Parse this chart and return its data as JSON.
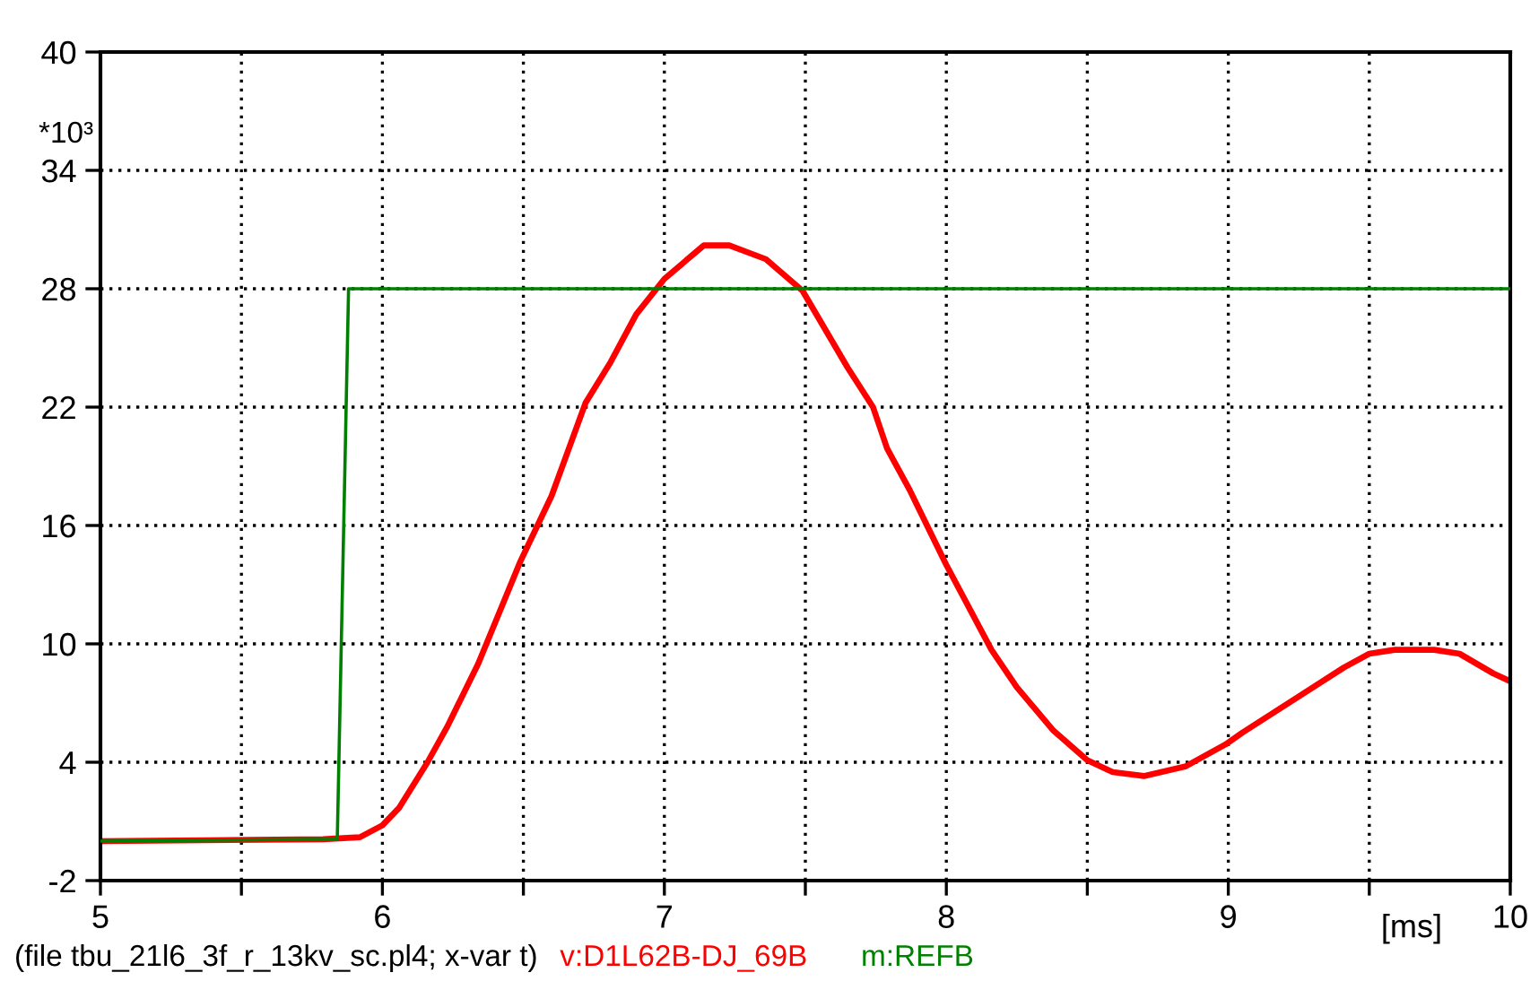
{
  "chart_data": {
    "type": "line",
    "xlabel": "[ms]",
    "ylabel": "*10³",
    "annotations": [
      "(file tbu_21l6_3f_r_13kv_sc.pl4; x-var t)"
    ],
    "xlim": [
      5,
      10
    ],
    "ylim": [
      -2,
      40
    ],
    "xticks": [
      5,
      {
        "value": 5.5,
        "label": null
      },
      6,
      {
        "value": 6.5,
        "label": null
      },
      7,
      {
        "value": 7.5,
        "label": null
      },
      8,
      {
        "value": 8.5,
        "label": null
      },
      9,
      {
        "value": 9.5,
        "label": null
      },
      10
    ],
    "yticks": [
      -2,
      4,
      10,
      16,
      22,
      28,
      34,
      40
    ],
    "grid": true,
    "legend": "bottom",
    "line_style": "solid",
    "series": [
      {
        "name": "v:D1L62B-DJ_69B",
        "color": "#ff0000",
        "x": [
          5,
          5.79,
          5.92,
          6.0,
          6.06,
          6.16,
          6.23,
          6.34,
          6.49,
          6.6,
          6.72,
          6.81,
          6.9,
          7.0,
          7.14,
          7.23,
          7.36,
          7.49,
          7.65,
          7.74,
          7.79,
          7.87,
          8.0,
          8.16,
          8.25,
          8.38,
          8.5,
          8.59,
          8.7,
          8.85,
          8.99,
          9.05,
          9.41,
          9.5,
          9.59,
          9.73,
          9.82,
          9.94,
          10.0
        ],
        "values": [
          0.0,
          0.1,
          0.2,
          0.8,
          1.7,
          4.0,
          5.8,
          9.0,
          14.2,
          17.5,
          22.2,
          24.3,
          26.7,
          28.5,
          30.2,
          30.2,
          29.5,
          27.9,
          24.0,
          22.0,
          19.9,
          17.8,
          14.0,
          9.7,
          7.8,
          5.6,
          4.1,
          3.5,
          3.3,
          3.8,
          4.9,
          5.5,
          8.8,
          9.5,
          9.7,
          9.7,
          9.5,
          8.5,
          8.1
        ]
      },
      {
        "name": "m:REFB",
        "color": "#008000",
        "x": [
          5,
          5.84,
          5.88,
          10
        ],
        "values": [
          0.0,
          0.1,
          28,
          28
        ]
      }
    ]
  }
}
